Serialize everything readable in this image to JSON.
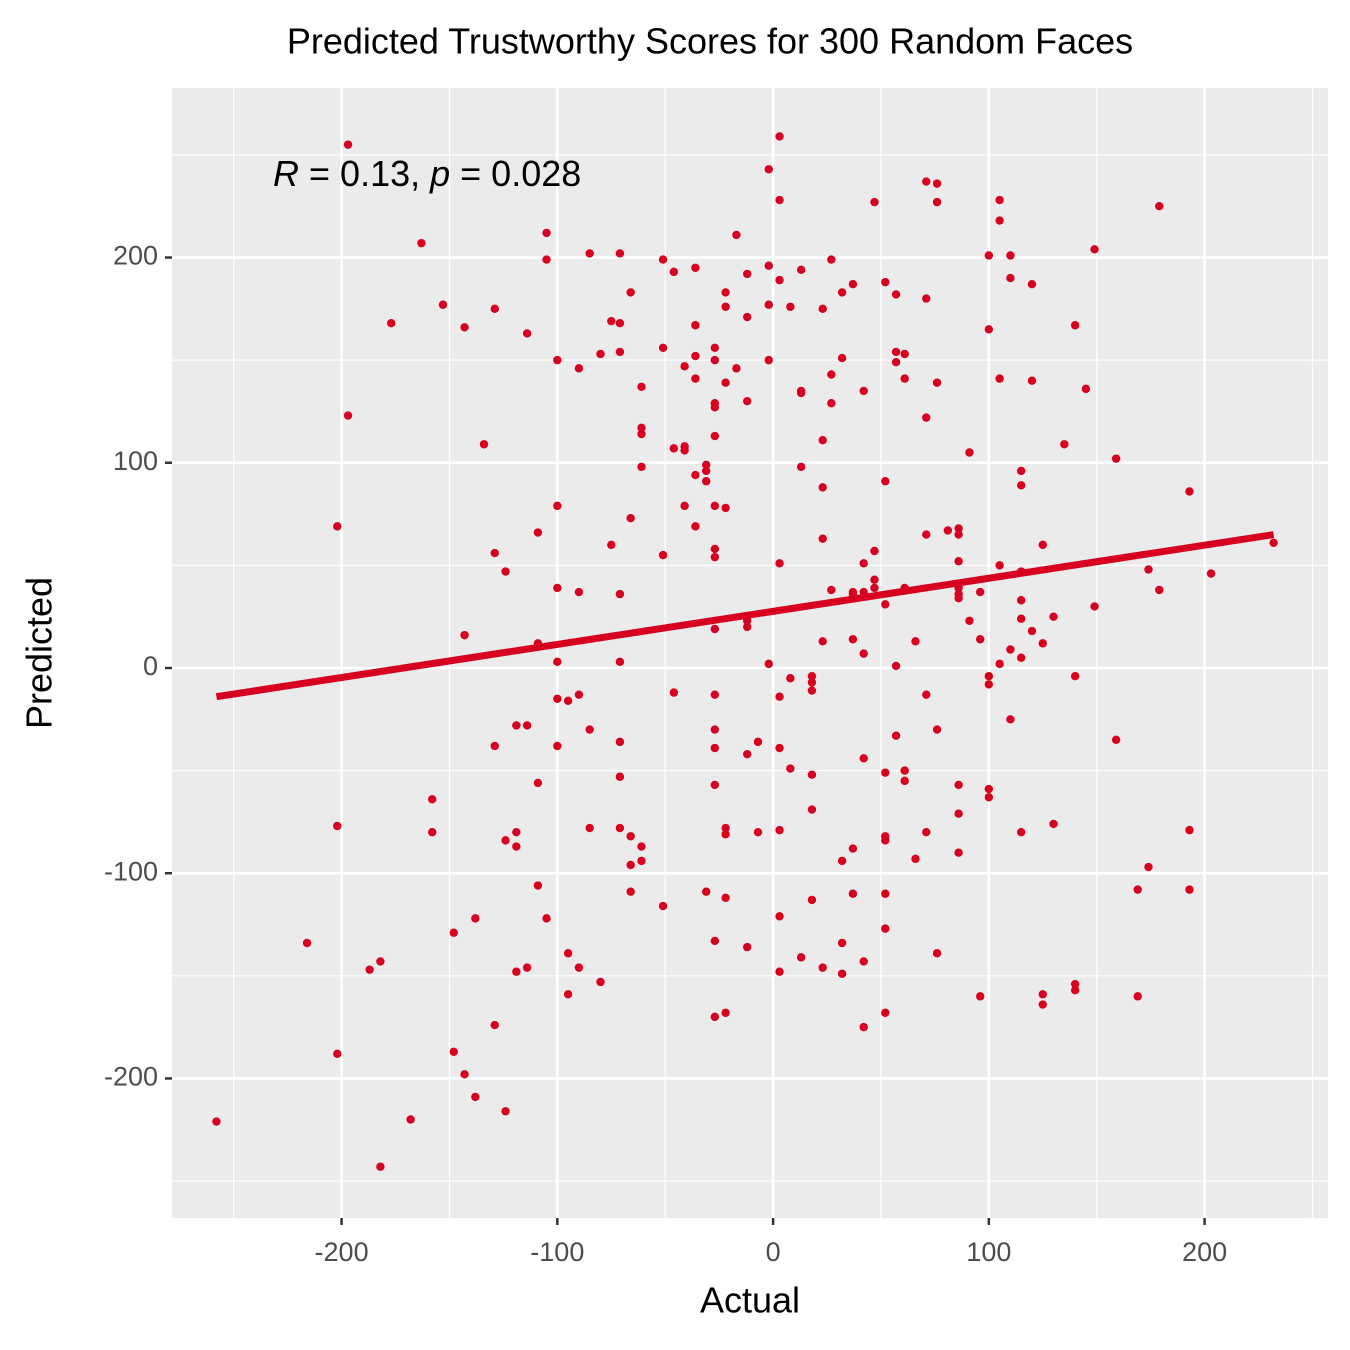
{
  "chart_data": {
    "type": "scatter",
    "title": "Predicted Trustworthy Scores for 300 Random Faces",
    "x_label": "Actual",
    "y_label": "Predicted",
    "annotation": [
      "R",
      " = 0.13, ",
      "p",
      " = 0.028"
    ],
    "color": "#d7001f",
    "x": [
      -258,
      -216,
      -202,
      -202,
      -202,
      -197,
      -197,
      -187,
      -182,
      -182,
      -177,
      -168,
      -163,
      -158,
      -158,
      -153,
      -148,
      -148,
      -143,
      -143,
      -143,
      -138,
      -138,
      -134,
      -129,
      -129,
      -129,
      -129,
      -124,
      -124,
      -124,
      -119,
      -119,
      -119,
      -119,
      -114,
      -114,
      -114,
      -109,
      -109,
      -109,
      -109,
      -105,
      -105,
      -105,
      -100,
      -100,
      -100,
      -100,
      -100,
      -100,
      -95,
      -95,
      -95,
      -90,
      -90,
      -90,
      -90,
      -85,
      -85,
      -85,
      -80,
      -80,
      -75,
      -75,
      -71,
      -71,
      -71,
      -71,
      -71,
      -71,
      -71,
      -71,
      -66,
      -66,
      -66,
      -66,
      -66,
      -61,
      -61,
      -61,
      -61,
      -61,
      -61,
      -51,
      -51,
      -51,
      -51,
      -46,
      -46,
      -46,
      -41,
      -41,
      -41,
      -41,
      -36,
      -36,
      -36,
      -36,
      -36,
      -36,
      -31,
      -31,
      -31,
      -31,
      -27,
      -27,
      -27,
      -27,
      -27,
      -27,
      -27,
      -27,
      -27,
      -27,
      -27,
      -27,
      -27,
      -27,
      -27,
      -22,
      -22,
      -22,
      -22,
      -22,
      -22,
      -22,
      -22,
      -17,
      -17,
      -12,
      -12,
      -12,
      -12,
      -12,
      -12,
      -12,
      -7,
      -7,
      -2,
      -2,
      -2,
      -2,
      -2,
      3,
      3,
      3,
      3,
      3,
      3,
      3,
      3,
      3,
      8,
      8,
      8,
      13,
      13,
      13,
      13,
      13,
      18,
      18,
      18,
      18,
      18,
      18,
      23,
      23,
      23,
      23,
      23,
      23,
      27,
      27,
      27,
      27,
      32,
      32,
      32,
      32,
      32,
      37,
      37,
      37,
      37,
      37,
      37,
      42,
      42,
      42,
      42,
      42,
      42,
      42,
      47,
      47,
      47,
      47,
      52,
      52,
      52,
      52,
      52,
      52,
      52,
      52,
      52,
      57,
      57,
      57,
      57,
      57,
      61,
      61,
      61,
      61,
      61,
      66,
      66,
      71,
      71,
      71,
      71,
      71,
      71,
      76,
      76,
      76,
      76,
      76,
      81,
      86,
      86,
      86,
      86,
      86,
      86,
      86,
      86,
      86,
      91,
      91,
      96,
      96,
      96,
      100,
      100,
      100,
      100,
      100,
      100,
      105,
      105,
      105,
      105,
      105,
      110,
      110,
      110,
      110,
      115,
      115,
      115,
      115,
      115,
      115,
      115,
      120,
      120,
      120,
      125,
      125,
      125,
      125,
      130,
      130,
      135,
      140,
      140,
      140,
      140,
      145,
      149,
      149,
      159,
      159,
      169,
      169,
      174,
      174,
      179,
      179,
      193,
      193,
      193,
      203,
      232
    ],
    "values": [
      -221,
      -134,
      69,
      -77,
      -188,
      255,
      123,
      -147,
      -143,
      -243,
      168,
      -220,
      207,
      -64,
      -80,
      177,
      -129,
      -187,
      16,
      166,
      -198,
      -122,
      -209,
      109,
      175,
      56,
      -38,
      -174,
      47,
      -84,
      -216,
      -28,
      -80,
      -87,
      -148,
      163,
      -28,
      -146,
      66,
      12,
      -56,
      -106,
      212,
      199,
      -122,
      150,
      79,
      39,
      3,
      -15,
      -38,
      -16,
      -139,
      -159,
      146,
      37,
      -13,
      -146,
      202,
      -30,
      -78,
      153,
      -153,
      169,
      60,
      202,
      168,
      154,
      36,
      3,
      -36,
      -53,
      -78,
      183,
      73,
      -82,
      -96,
      -109,
      137,
      117,
      114,
      98,
      -87,
      -94,
      199,
      156,
      55,
      -116,
      193,
      107,
      -12,
      147,
      108,
      106,
      79,
      195,
      167,
      152,
      141,
      94,
      69,
      99,
      96,
      91,
      -109,
      156,
      150,
      129,
      127,
      113,
      79,
      58,
      54,
      19,
      -13,
      -30,
      -39,
      -57,
      -133,
      -170,
      183,
      176,
      139,
      78,
      -78,
      -81,
      -112,
      -168,
      211,
      146,
      192,
      171,
      130,
      23,
      20,
      -42,
      -136,
      -36,
      -80,
      243,
      196,
      177,
      150,
      2,
      259,
      228,
      189,
      51,
      -14,
      -39,
      -79,
      -121,
      -148,
      176,
      -5,
      -49,
      194,
      134,
      135,
      98,
      -141,
      -4,
      -7,
      -11,
      -52,
      -69,
      -113,
      175,
      111,
      88,
      63,
      13,
      -146,
      199,
      143,
      129,
      38,
      183,
      151,
      -94,
      -134,
      -149,
      187,
      37,
      36,
      14,
      -88,
      -110,
      135,
      51,
      37,
      7,
      -44,
      -143,
      -175,
      227,
      57,
      43,
      39,
      188,
      91,
      31,
      -51,
      -82,
      -84,
      -110,
      -127,
      -168,
      182,
      154,
      149,
      1,
      -33,
      153,
      141,
      39,
      -50,
      -55,
      13,
      -93,
      237,
      180,
      122,
      65,
      -13,
      -80,
      236,
      227,
      139,
      -30,
      -139,
      67,
      68,
      65,
      52,
      39,
      36,
      34,
      -57,
      -71,
      -90,
      105,
      23,
      37,
      14,
      -160,
      201,
      165,
      -4,
      -8,
      -59,
      -63,
      228,
      218,
      141,
      50,
      2,
      201,
      190,
      9,
      -25,
      96,
      89,
      47,
      33,
      24,
      5,
      -80,
      187,
      140,
      18,
      60,
      12,
      -159,
      -164,
      25,
      -76,
      109,
      167,
      -4,
      -154,
      -157,
      136,
      204,
      30,
      102,
      -35,
      -108,
      -160,
      48,
      -97,
      225,
      38,
      86,
      -79,
      -108,
      46,
      61
    ],
    "trend": {
      "x": [
        -258,
        232
      ],
      "values": [
        -14,
        65
      ],
      "color": "#d7001f"
    },
    "xlim": [
      -278.6,
      257.2
    ],
    "ylim": [
      -268,
      282.6
    ],
    "xticks": [
      -200,
      -100,
      0,
      100,
      200
    ],
    "yticks": [
      -200,
      -100,
      0,
      100,
      200
    ],
    "grid": true
  }
}
